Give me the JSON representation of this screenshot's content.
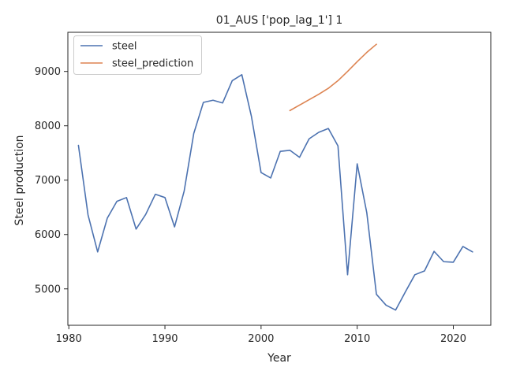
{
  "chart_data": {
    "type": "line",
    "title": "01_AUS ['pop_lag_1'] 1",
    "xlabel": "Year",
    "ylabel": "Steel production",
    "xlim": [
      1979.9,
      2023.9
    ],
    "ylim": [
      4330,
      9720
    ],
    "xticks": [
      1980,
      1990,
      2000,
      2010,
      2020
    ],
    "yticks": [
      5000,
      6000,
      7000,
      8000,
      9000
    ],
    "legend_position": "top-left",
    "grid": false,
    "series": [
      {
        "name": "steel",
        "color": "#4c72b0",
        "x": [
          1981,
          1982,
          1983,
          1984,
          1985,
          1986,
          1987,
          1988,
          1989,
          1990,
          1991,
          1992,
          1993,
          1994,
          1995,
          1996,
          1997,
          1998,
          1999,
          2000,
          2001,
          2002,
          2003,
          2004,
          2005,
          2006,
          2007,
          2008,
          2009,
          2010,
          2011,
          2012,
          2013,
          2014,
          2015,
          2016,
          2017,
          2018,
          2019,
          2020,
          2021,
          2022
        ],
        "y": [
          7640,
          6360,
          5680,
          6300,
          6610,
          6680,
          6100,
          6370,
          6740,
          6680,
          6140,
          6800,
          7860,
          8430,
          8470,
          8420,
          8830,
          8940,
          8170,
          7140,
          7040,
          7530,
          7550,
          7420,
          7760,
          7880,
          7950,
          7630,
          5260,
          7300,
          6400,
          4900,
          4700,
          4610,
          4940,
          5260,
          5330,
          5690,
          5500,
          5490,
          5780,
          5680
        ]
      },
      {
        "name": "steel_prediction",
        "color": "#dd8452",
        "x": [
          2003,
          2004,
          2005,
          2006,
          2007,
          2008,
          2009,
          2010,
          2011,
          2012
        ],
        "y": [
          8280,
          8380,
          8480,
          8580,
          8690,
          8830,
          9000,
          9180,
          9350,
          9500
        ]
      }
    ]
  }
}
